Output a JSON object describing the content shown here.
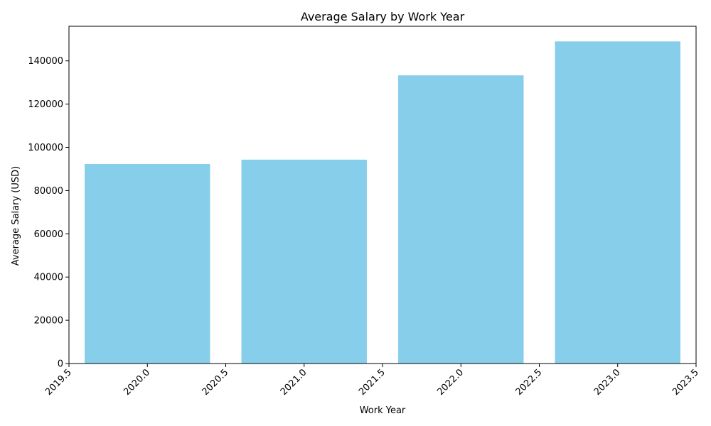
{
  "chart_data": {
    "type": "bar",
    "title": "Average Salary by Work Year",
    "xlabel": "Work Year",
    "ylabel": "Average Salary (USD)",
    "x": [
      2020,
      2021,
      2022,
      2023
    ],
    "values": [
      92300,
      94300,
      133300,
      149000
    ],
    "bar_width": 0.8,
    "xlim": [
      2019.5,
      2023.5
    ],
    "ylim": [
      0,
      156000
    ],
    "xticks": [
      2019.5,
      2020.0,
      2020.5,
      2021.0,
      2021.5,
      2022.0,
      2022.5,
      2023.0,
      2023.5
    ],
    "xtick_labels": [
      "2019.5",
      "2020.0",
      "2020.5",
      "2021.0",
      "2021.5",
      "2022.0",
      "2022.5",
      "2023.0",
      "2023.5"
    ],
    "yticks": [
      0,
      20000,
      40000,
      60000,
      80000,
      100000,
      120000,
      140000
    ],
    "ytick_labels": [
      "0",
      "20000",
      "40000",
      "60000",
      "80000",
      "100000",
      "120000",
      "140000"
    ],
    "xtick_rotation_deg": 45,
    "grid": false,
    "colors": {
      "bar": "#87ceeb",
      "axis": "#000000"
    }
  }
}
